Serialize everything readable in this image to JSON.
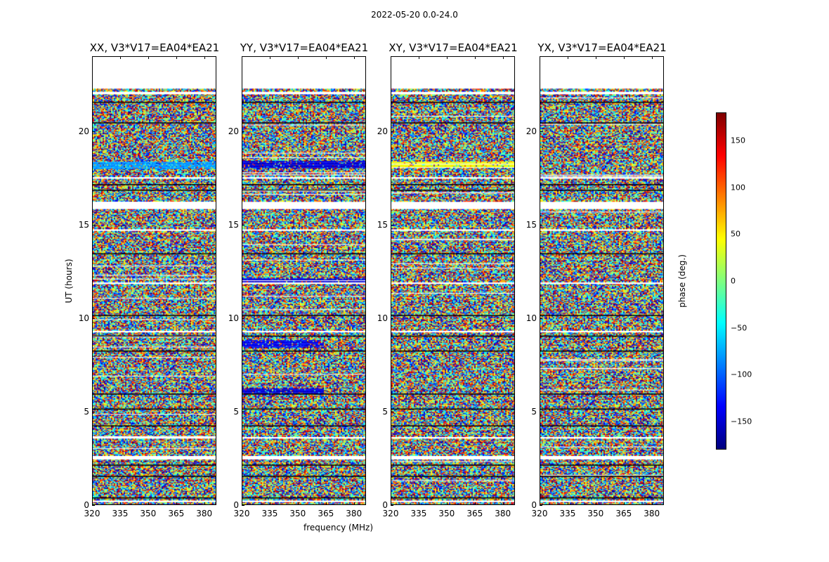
{
  "suptitle": "2022-05-20 0.0-24.0",
  "chart_data": {
    "type": "heatmap",
    "title": "2022-05-20 0.0-24.0",
    "xlabel": "frequency (MHz)",
    "ylabel": "UT (hours)",
    "xlim": [
      320,
      386.5
    ],
    "ylim": [
      0,
      24
    ],
    "xticks": [
      "320",
      "335",
      "350",
      "365",
      "380"
    ],
    "yticks": [
      "0",
      "5",
      "10",
      "15",
      "20"
    ],
    "data_time_range": [
      0,
      22.3
    ],
    "panels": [
      {
        "title": "XX, V3*V17=EA04*EA21",
        "coherent_bands": [
          {
            "t": [
              18.0,
              18.4
            ],
            "phase": -80
          }
        ]
      },
      {
        "title": "YY, V3*V17=EA04*EA21",
        "coherent_bands": [
          {
            "t": [
              18.05,
              18.45
            ],
            "phase": -150
          },
          {
            "t": [
              12.0,
              12.2
            ],
            "phase": -150
          },
          {
            "t": [
              8.5,
              8.9
            ],
            "phase": -140
          },
          {
            "t": [
              6.0,
              6.3
            ],
            "phase": -150
          }
        ]
      },
      {
        "title": "XY, V3*V17=EA04*EA21",
        "coherent_bands": [
          {
            "t": [
              18.1,
              18.4
            ],
            "phase": 40
          }
        ]
      },
      {
        "title": "YX, V3*V17=EA04*EA21",
        "coherent_bands": []
      }
    ],
    "flagged_time_ranges": [
      [
        15.9,
        16.3
      ],
      [
        22.0,
        22.15
      ],
      [
        2.5,
        2.7
      ],
      [
        0.2,
        0.3
      ],
      [
        17.5,
        17.6
      ],
      [
        11.9,
        12.0
      ],
      [
        9.3,
        9.4
      ],
      [
        14.7,
        14.8
      ],
      [
        3.6,
        3.7
      ]
    ],
    "black_lines_hours": [
      0.45,
      1.6,
      2.2,
      4.3,
      5.2,
      6.0,
      8.3,
      9.1,
      10.2,
      13.5,
      16.9,
      17.2,
      20.5,
      21.6
    ],
    "colorbar": {
      "label": "phase (deg.)",
      "range": [
        -180,
        180
      ],
      "ticks": [
        "150",
        "100",
        "50",
        "0",
        "−50",
        "−100",
        "−150"
      ],
      "tick_values": [
        150,
        100,
        50,
        0,
        -50,
        -100,
        -150
      ],
      "colormap": "jet"
    }
  }
}
